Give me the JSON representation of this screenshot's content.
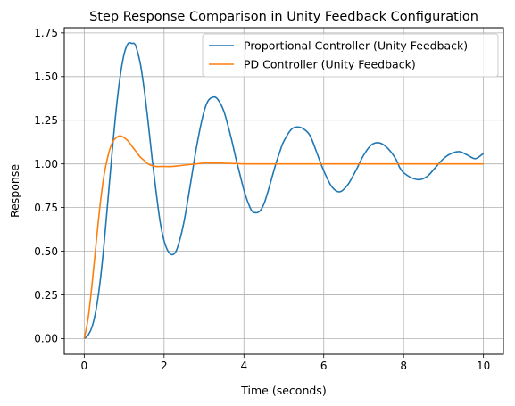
{
  "chart_data": {
    "type": "line",
    "title": "Step Response Comparison in Unity Feedback Configuration",
    "xlabel": "Time (seconds)",
    "ylabel": "Response",
    "xlim": [
      -0.5,
      10.5
    ],
    "ylim": [
      -0.09,
      1.78
    ],
    "grid": true,
    "legend_position": "top-right",
    "xticks": [
      0,
      2,
      4,
      6,
      8,
      10
    ],
    "xtick_labels": [
      "0",
      "2",
      "4",
      "6",
      "8",
      "10"
    ],
    "yticks": [
      0.0,
      0.25,
      0.5,
      0.75,
      1.0,
      1.25,
      1.5,
      1.75
    ],
    "ytick_labels": [
      "0.00",
      "0.25",
      "0.50",
      "0.75",
      "1.00",
      "1.25",
      "1.50",
      "1.75"
    ],
    "series": [
      {
        "name": "Proportional Controller (Unity Feedback)",
        "color": "#1f77b4",
        "x": [
          0,
          0.1,
          0.2,
          0.3,
          0.4,
          0.5,
          0.6,
          0.7,
          0.8,
          0.9,
          1.0,
          1.1,
          1.2,
          1.25,
          1.3,
          1.4,
          1.5,
          1.6,
          1.7,
          1.8,
          1.9,
          2.0,
          2.1,
          2.2,
          2.3,
          2.4,
          2.5,
          2.6,
          2.7,
          2.8,
          2.9,
          3.0,
          3.1,
          3.2,
          3.3,
          3.4,
          3.5,
          3.6,
          3.7,
          3.8,
          3.9,
          4.0,
          4.1,
          4.2,
          4.3,
          4.4,
          4.5,
          4.6,
          4.7,
          4.8,
          4.9,
          5.0,
          5.2,
          5.4,
          5.6,
          5.7,
          5.8,
          6.0,
          6.2,
          6.4,
          6.6,
          6.8,
          7.0,
          7.2,
          7.4,
          7.6,
          7.8,
          7.9,
          8.0,
          8.2,
          8.4,
          8.6,
          8.8,
          9.0,
          9.2,
          9.4,
          9.6,
          9.8,
          10.0
        ],
        "y": [
          0.0,
          0.02,
          0.07,
          0.17,
          0.33,
          0.55,
          0.81,
          1.07,
          1.31,
          1.5,
          1.63,
          1.69,
          1.69,
          1.69,
          1.67,
          1.58,
          1.43,
          1.24,
          1.03,
          0.84,
          0.67,
          0.56,
          0.5,
          0.48,
          0.5,
          0.57,
          0.67,
          0.8,
          0.94,
          1.08,
          1.2,
          1.3,
          1.36,
          1.38,
          1.38,
          1.35,
          1.3,
          1.22,
          1.13,
          1.03,
          0.94,
          0.85,
          0.78,
          0.73,
          0.72,
          0.73,
          0.77,
          0.84,
          0.92,
          1.0,
          1.07,
          1.13,
          1.2,
          1.21,
          1.18,
          1.14,
          1.08,
          0.96,
          0.87,
          0.84,
          0.88,
          0.96,
          1.05,
          1.11,
          1.12,
          1.09,
          1.03,
          0.98,
          0.95,
          0.92,
          0.91,
          0.93,
          0.98,
          1.03,
          1.06,
          1.07,
          1.05,
          1.03,
          1.06
        ]
      },
      {
        "name": "PD Controller (Unity Feedback)",
        "color": "#ff7f0e",
        "x": [
          0,
          0.1,
          0.2,
          0.3,
          0.4,
          0.5,
          0.6,
          0.7,
          0.8,
          0.9,
          1.0,
          1.1,
          1.2,
          1.3,
          1.4,
          1.5,
          1.6,
          1.7,
          1.8,
          1.9,
          2.0,
          2.2,
          2.4,
          2.6,
          2.8,
          3.0,
          3.2,
          3.4,
          3.6,
          3.8,
          4.0,
          4.5,
          5.0,
          6.0,
          7.0,
          8.0,
          9.0,
          10.0
        ],
        "y": [
          0.0,
          0.12,
          0.32,
          0.55,
          0.77,
          0.94,
          1.05,
          1.12,
          1.15,
          1.16,
          1.15,
          1.13,
          1.1,
          1.07,
          1.04,
          1.02,
          1.0,
          0.99,
          0.985,
          0.985,
          0.985,
          0.985,
          0.99,
          0.995,
          1.0,
          1.005,
          1.005,
          1.005,
          1.003,
          1.002,
          1.0,
          1.0,
          1.0,
          1.0,
          1.0,
          1.0,
          1.0,
          1.0
        ]
      }
    ]
  }
}
